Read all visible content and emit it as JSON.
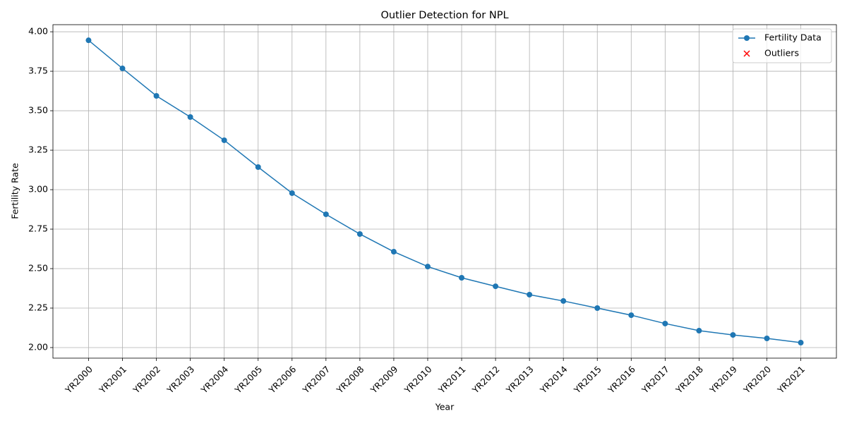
{
  "chart_data": {
    "type": "line",
    "title": "Outlier Detection for NPL",
    "x_label": "Year",
    "y_label": "Fertility Rate",
    "categories": [
      "YR2000",
      "YR2001",
      "YR2002",
      "YR2003",
      "YR2004",
      "YR2005",
      "YR2006",
      "YR2007",
      "YR2008",
      "YR2009",
      "YR2010",
      "YR2011",
      "YR2012",
      "YR2013",
      "YR2014",
      "YR2015",
      "YR2016",
      "YR2017",
      "YR2018",
      "YR2019",
      "YR2020",
      "YR2021"
    ],
    "series": [
      {
        "name": "Fertility Data",
        "color": "#1f77b4",
        "type": "line",
        "marker": "o",
        "values": [
          3.946,
          3.768,
          3.594,
          3.46,
          3.313,
          3.143,
          2.978,
          2.844,
          2.719,
          2.607,
          2.513,
          2.442,
          2.388,
          2.335,
          2.295,
          2.25,
          2.205,
          2.152,
          2.107,
          2.08,
          2.058,
          2.031
        ]
      },
      {
        "name": "Outliers",
        "color": "#ff0000",
        "type": "scatter",
        "marker": "x",
        "values": [
          null,
          null,
          null,
          null,
          null,
          null,
          null,
          null,
          null,
          null,
          null,
          null,
          null,
          null,
          null,
          null,
          null,
          null,
          null,
          null,
          null,
          null
        ]
      }
    ],
    "ylim": [
      1.933,
      4.045
    ],
    "yticks": [
      {
        "value": 2.0,
        "label": "2.00"
      },
      {
        "value": 2.25,
        "label": "2.25"
      },
      {
        "value": 2.5,
        "label": "2.50"
      },
      {
        "value": 2.75,
        "label": "2.75"
      },
      {
        "value": 3.0,
        "label": "3.00"
      },
      {
        "value": 3.25,
        "label": "3.25"
      },
      {
        "value": 3.5,
        "label": "3.50"
      },
      {
        "value": 3.75,
        "label": "3.75"
      },
      {
        "value": 4.0,
        "label": "4.00"
      }
    ],
    "grid": true,
    "legend": "upper right"
  }
}
